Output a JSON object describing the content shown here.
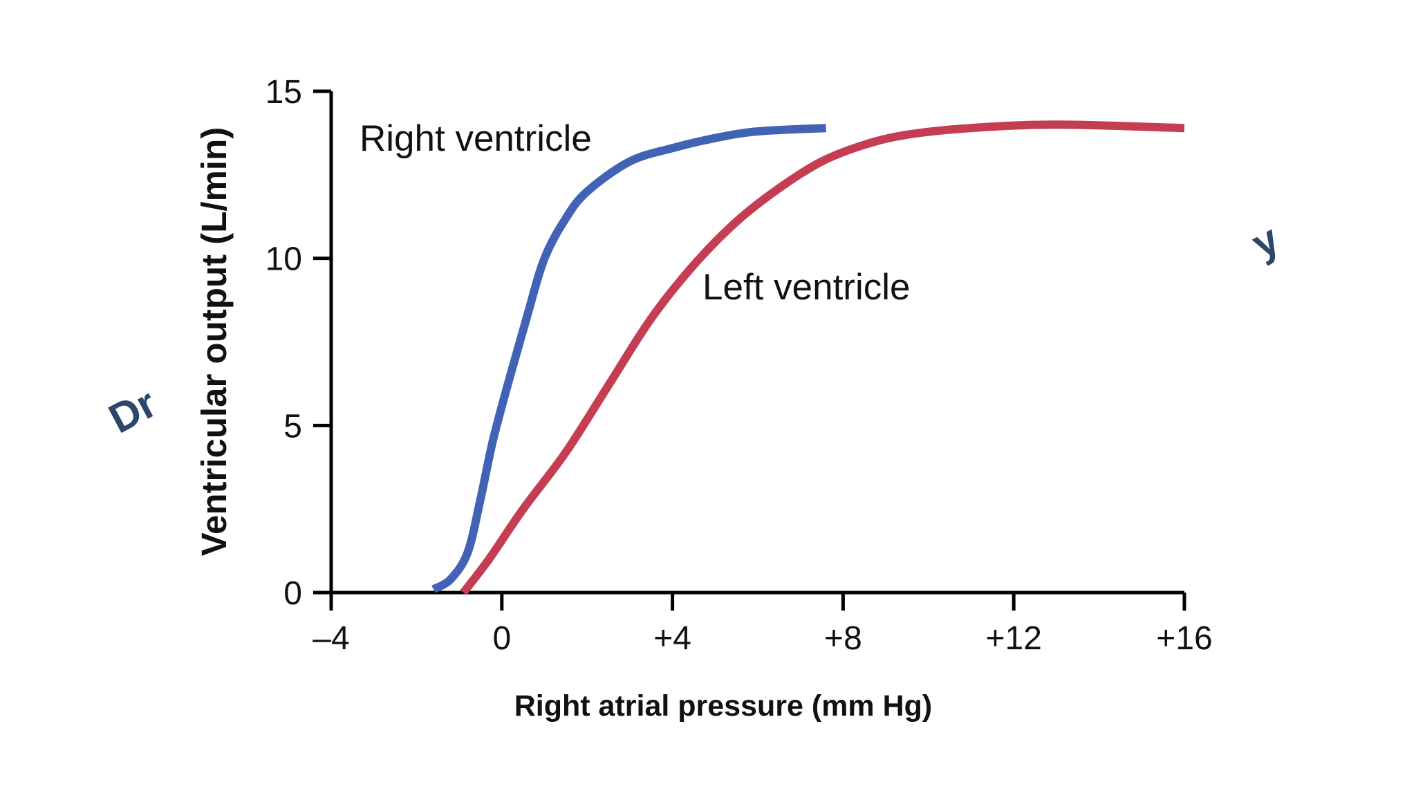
{
  "chart_data": {
    "type": "line",
    "title": "",
    "xlabel": "Right atrial pressure (mm Hg)",
    "ylabel": "Ventricular output (L/min)",
    "xlim": [
      -4,
      16
    ],
    "ylim": [
      0,
      15
    ],
    "x_ticks": [
      -4,
      0,
      4,
      8,
      12,
      16
    ],
    "x_tick_labels": [
      "–4",
      "0",
      "+4",
      "+8",
      "+12",
      "+16"
    ],
    "y_ticks": [
      0,
      5,
      10,
      15
    ],
    "y_tick_labels": [
      "0",
      "5",
      "10",
      "15"
    ],
    "grid": false,
    "legend": "inline labels",
    "series": [
      {
        "name": "Right ventricle",
        "color": "#4262b5",
        "points": [
          [
            -1.6,
            0.1
          ],
          [
            -1.2,
            0.4
          ],
          [
            -0.8,
            1.2
          ],
          [
            -0.5,
            2.8
          ],
          [
            -0.2,
            4.6
          ],
          [
            0.2,
            6.5
          ],
          [
            0.6,
            8.3
          ],
          [
            1.0,
            10.0
          ],
          [
            1.5,
            11.2
          ],
          [
            2.0,
            12.0
          ],
          [
            3.0,
            12.9
          ],
          [
            4.0,
            13.3
          ],
          [
            5.0,
            13.6
          ],
          [
            6.0,
            13.8
          ],
          [
            7.6,
            13.9
          ]
        ]
      },
      {
        "name": "Left ventricle",
        "color": "#c53d53",
        "points": [
          [
            -0.9,
            0.0
          ],
          [
            -0.3,
            1.0
          ],
          [
            0.5,
            2.5
          ],
          [
            1.5,
            4.2
          ],
          [
            2.5,
            6.2
          ],
          [
            3.5,
            8.2
          ],
          [
            4.5,
            9.8
          ],
          [
            5.5,
            11.1
          ],
          [
            6.5,
            12.1
          ],
          [
            7.5,
            12.9
          ],
          [
            8.5,
            13.4
          ],
          [
            9.5,
            13.7
          ],
          [
            11.0,
            13.9
          ],
          [
            13.0,
            14.0
          ],
          [
            16.0,
            13.9
          ]
        ]
      }
    ]
  },
  "watermark": {
    "left_text": "Dr",
    "right_text": "y",
    "color": "#2c466c"
  }
}
